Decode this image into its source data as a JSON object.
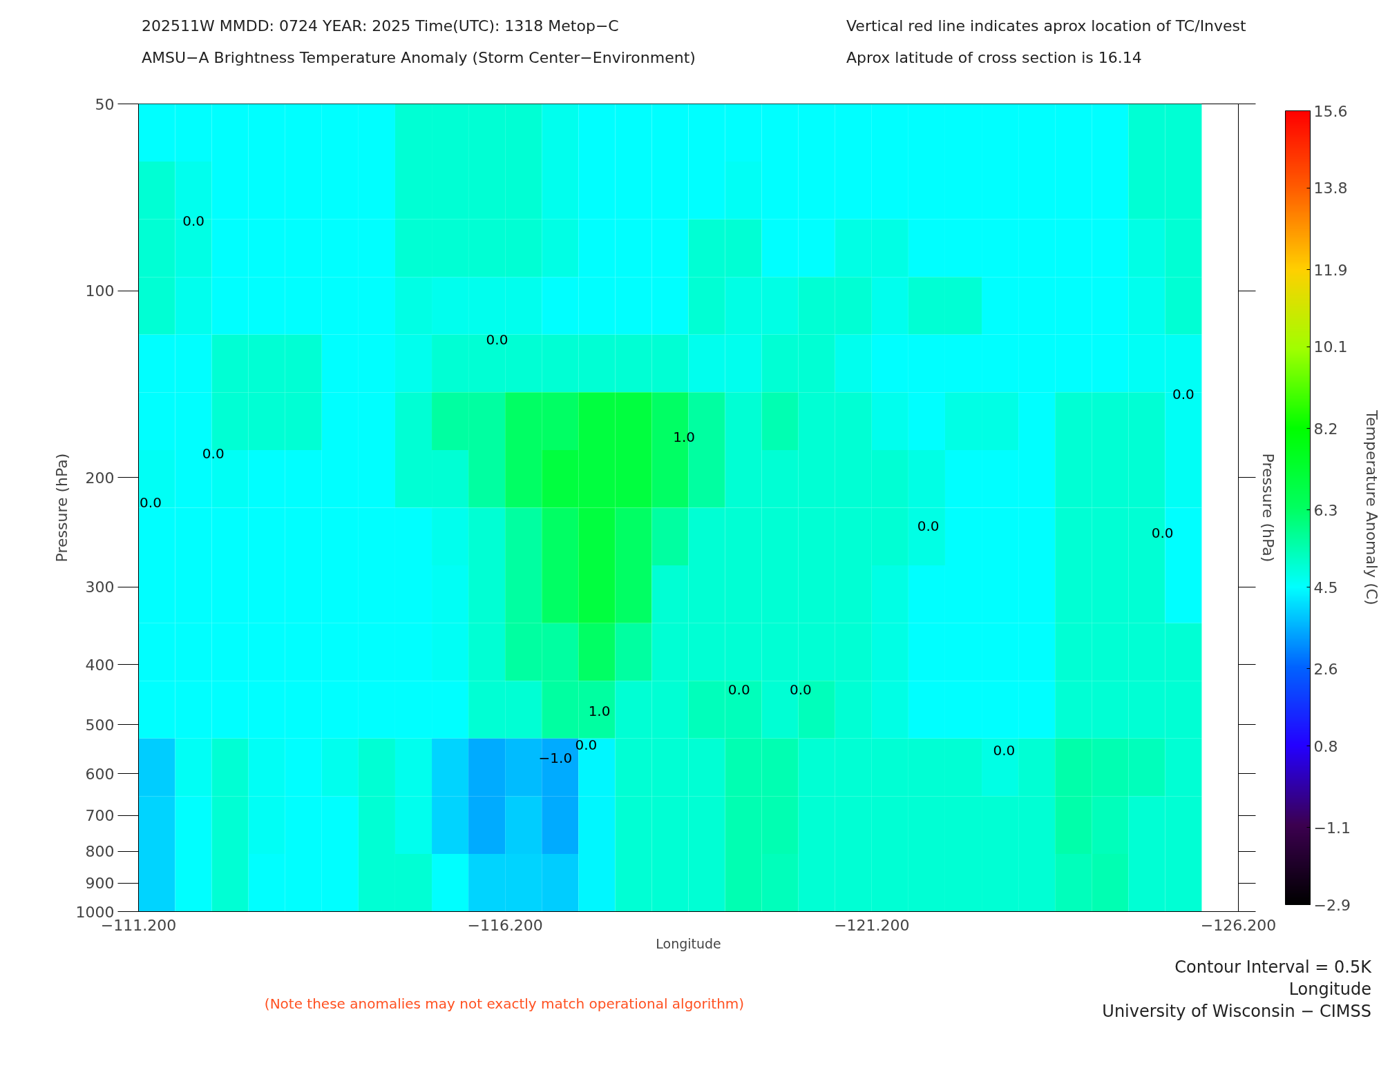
{
  "chart_data": {
    "type": "heatmap",
    "title": "202511W  MMDD: 0724 YEAR: 2025 Time(UTC): 1318 Metop−C",
    "subtitle": "AMSU−A Brightness Temperature Anomaly (Storm Center−Environment)",
    "xlabel": "Longitude",
    "ylabel": "Pressure (hPa)",
    "y2label": "Pressure (hPa)",
    "clabel": "Temperature Anomaly (C)",
    "xlim": [
      -111.2,
      -126.2
    ],
    "xticks": [
      {
        "value": -111.2,
        "label": "−111.200"
      },
      {
        "value": -116.2,
        "label": "−116.200"
      },
      {
        "value": -121.2,
        "label": "−121.200"
      },
      {
        "value": -126.2,
        "label": "−126.200"
      }
    ],
    "ylim": [
      1000,
      50
    ],
    "yticks": [
      50,
      100,
      200,
      300,
      400,
      500,
      600,
      700,
      800,
      900,
      1000
    ],
    "log": "y",
    "clim": [
      -2.9,
      15.6
    ],
    "cticks": [
      -2.9,
      -1.1,
      0.8,
      2.6,
      4.5,
      6.3,
      8.2,
      10.1,
      11.9,
      13.8,
      15.6
    ],
    "cells": [
      [
        4.5,
        4.5,
        4.5,
        4.5,
        4.5,
        4.5,
        4.5,
        5.0,
        5.0,
        5.0,
        5.0,
        4.7,
        4.5,
        4.5,
        4.5,
        4.5,
        4.5,
        4.5,
        4.5,
        4.5,
        4.5,
        4.5,
        4.5,
        4.5,
        4.5,
        4.5,
        4.5,
        5.0,
        5.0,
        null
      ],
      [
        5.0,
        4.7,
        4.5,
        4.5,
        4.5,
        4.5,
        4.5,
        5.0,
        5.0,
        5.0,
        5.0,
        4.7,
        4.5,
        4.5,
        4.5,
        4.5,
        4.6,
        4.5,
        4.5,
        4.5,
        4.5,
        4.5,
        4.5,
        4.5,
        4.5,
        4.5,
        4.5,
        5.0,
        5.0,
        null
      ],
      [
        5.0,
        4.8,
        4.5,
        4.5,
        4.5,
        4.5,
        4.5,
        5.0,
        5.0,
        5.0,
        5.0,
        4.8,
        4.5,
        4.5,
        4.5,
        5.0,
        5.0,
        4.5,
        4.5,
        4.8,
        4.8,
        4.5,
        4.5,
        4.5,
        4.5,
        4.5,
        4.5,
        4.8,
        5.0,
        null
      ],
      [
        5.0,
        4.7,
        4.5,
        4.5,
        4.5,
        4.5,
        4.5,
        4.8,
        4.7,
        4.7,
        4.7,
        4.5,
        4.5,
        4.5,
        4.5,
        5.0,
        4.8,
        4.8,
        5.0,
        5.0,
        4.7,
        5.0,
        5.0,
        4.5,
        4.5,
        4.5,
        4.5,
        4.7,
        5.0,
        null
      ],
      [
        4.5,
        4.5,
        5.0,
        5.0,
        5.0,
        4.5,
        4.5,
        4.7,
        5.0,
        5.0,
        5.0,
        5.0,
        5.0,
        5.0,
        5.0,
        4.7,
        4.7,
        5.0,
        5.0,
        4.7,
        4.5,
        4.5,
        4.5,
        4.5,
        4.5,
        4.5,
        4.5,
        4.6,
        4.6,
        null
      ],
      [
        4.5,
        4.5,
        5.0,
        5.0,
        5.0,
        4.5,
        4.5,
        5.0,
        5.6,
        5.6,
        6.3,
        6.3,
        7.0,
        7.0,
        6.3,
        5.6,
        5.0,
        5.4,
        5.0,
        5.0,
        4.7,
        4.5,
        4.8,
        4.8,
        4.5,
        5.0,
        5.0,
        5.0,
        4.6,
        null
      ],
      [
        4.6,
        4.5,
        4.6,
        4.5,
        4.5,
        4.5,
        4.5,
        5.0,
        5.0,
        5.6,
        6.3,
        7.0,
        7.0,
        7.0,
        6.3,
        5.6,
        5.0,
        5.0,
        5.0,
        5.0,
        5.0,
        4.8,
        4.5,
        4.5,
        4.5,
        5.0,
        5.0,
        5.0,
        4.6,
        null
      ],
      [
        4.5,
        4.5,
        4.5,
        4.5,
        4.5,
        4.5,
        4.5,
        4.5,
        4.7,
        5.0,
        5.6,
        6.3,
        7.0,
        6.3,
        5.6,
        5.0,
        5.0,
        5.0,
        5.0,
        5.0,
        5.0,
        4.8,
        4.5,
        4.5,
        4.5,
        5.0,
        5.0,
        5.0,
        4.5,
        null
      ],
      [
        4.5,
        4.5,
        4.5,
        4.5,
        4.5,
        4.5,
        4.5,
        4.5,
        4.6,
        5.0,
        5.6,
        6.3,
        7.0,
        6.3,
        5.0,
        5.0,
        5.0,
        5.0,
        5.0,
        5.0,
        4.8,
        4.5,
        4.5,
        4.5,
        4.5,
        5.0,
        5.0,
        5.0,
        4.5,
        null
      ],
      [
        4.5,
        4.5,
        4.5,
        4.5,
        4.5,
        4.5,
        4.5,
        4.5,
        4.6,
        5.0,
        5.6,
        5.6,
        6.3,
        5.6,
        5.0,
        5.0,
        5.0,
        5.0,
        5.0,
        5.0,
        4.8,
        4.5,
        4.5,
        4.5,
        4.5,
        5.0,
        5.0,
        5.0,
        5.0,
        null
      ],
      [
        4.5,
        4.5,
        4.5,
        4.5,
        4.5,
        4.5,
        4.5,
        4.5,
        4.5,
        5.0,
        5.0,
        5.6,
        5.6,
        5.0,
        5.0,
        5.3,
        5.3,
        5.0,
        5.3,
        5.0,
        4.8,
        4.5,
        4.5,
        4.5,
        4.5,
        5.0,
        5.0,
        5.0,
        5.0,
        null
      ],
      [
        3.9,
        4.6,
        5.0,
        4.6,
        4.5,
        4.7,
        5.0,
        4.7,
        4.0,
        3.5,
        3.7,
        3.5,
        4.4,
        5.0,
        5.0,
        5.0,
        5.4,
        5.4,
        5.0,
        5.0,
        5.0,
        5.0,
        5.0,
        4.8,
        5.0,
        5.5,
        5.4,
        5.3,
        5.0,
        null
      ],
      [
        4.0,
        4.5,
        5.0,
        4.6,
        4.5,
        4.5,
        5.0,
        4.7,
        4.0,
        3.5,
        3.9,
        3.5,
        4.4,
        5.0,
        5.0,
        5.0,
        5.4,
        5.4,
        5.0,
        5.0,
        5.0,
        5.0,
        5.0,
        5.0,
        5.0,
        5.5,
        5.3,
        5.0,
        5.0,
        null
      ],
      [
        4.0,
        4.5,
        5.0,
        4.5,
        4.5,
        4.5,
        5.0,
        5.0,
        4.5,
        4.0,
        4.0,
        3.9,
        4.4,
        5.0,
        5.0,
        5.0,
        5.4,
        5.3,
        5.0,
        5.0,
        5.0,
        5.0,
        5.0,
        5.0,
        5.0,
        5.3,
        5.4,
        5.0,
        5.0,
        null
      ]
    ],
    "annotations": [
      "Vertical red line indicates aprox location of TC/Invest",
      "Aprox latitude of cross section is 16.14",
      "Contour Interval = 0.5K",
      "Longitude",
      "University of Wisconsin − CIMSS",
      "(Note these anomalies may not exactly match operational algorithm)",
      "0.0",
      "0.0",
      "0.0",
      "0.0",
      "0.0",
      "0.0",
      "0.0",
      "0.0",
      "0.0",
      "0.0",
      "0.0",
      "1.0",
      "1.0",
      "−1.0"
    ]
  }
}
